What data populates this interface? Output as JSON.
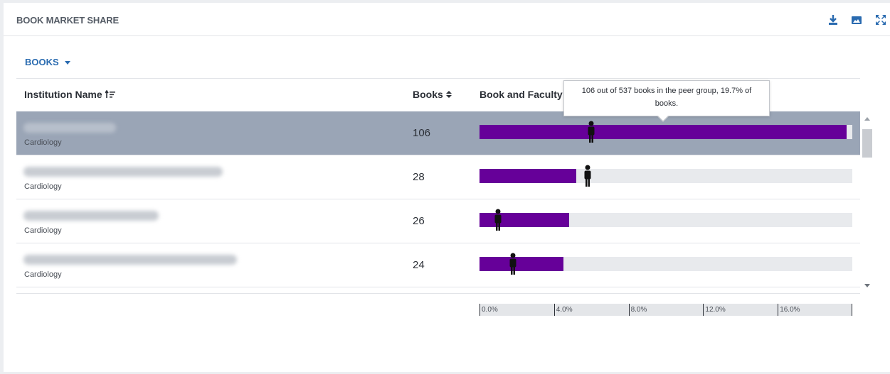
{
  "panel": {
    "title": "BOOK MARKET SHARE",
    "icons": [
      "download-icon",
      "image-icon",
      "expand-icon"
    ],
    "accent_color": "#2a6bb0"
  },
  "dropdown": {
    "label": "BOOKS"
  },
  "table": {
    "columns": {
      "institution": "Institution Name",
      "books": "Books",
      "share": "Book and Faculty Share"
    },
    "rows": [
      {
        "specialty": "Cardiology",
        "books": "106",
        "book_share_pct": 19.7,
        "faculty_share_pct": 6.0,
        "selected": true
      },
      {
        "specialty": "Cardiology",
        "books": "28",
        "book_share_pct": 5.2,
        "faculty_share_pct": 5.8,
        "selected": false
      },
      {
        "specialty": "Cardiology",
        "books": "26",
        "book_share_pct": 4.8,
        "faculty_share_pct": 1.0,
        "selected": false
      },
      {
        "specialty": "Cardiology",
        "books": "24",
        "book_share_pct": 4.5,
        "faculty_share_pct": 1.8,
        "selected": false
      }
    ]
  },
  "axis": {
    "max_pct": 20,
    "ticks": [
      "0.0%",
      "4.0%",
      "8.0%",
      "12.0%",
      "16.0%"
    ],
    "tick_values": [
      0,
      4,
      8,
      12,
      16
    ]
  },
  "tooltip": {
    "text": "106 out of 537 books in the peer group, 19.7% of books."
  },
  "colors": {
    "book_bar": "#660099",
    "track": "#e8eaed",
    "selected_row": "#9aa5b6"
  }
}
